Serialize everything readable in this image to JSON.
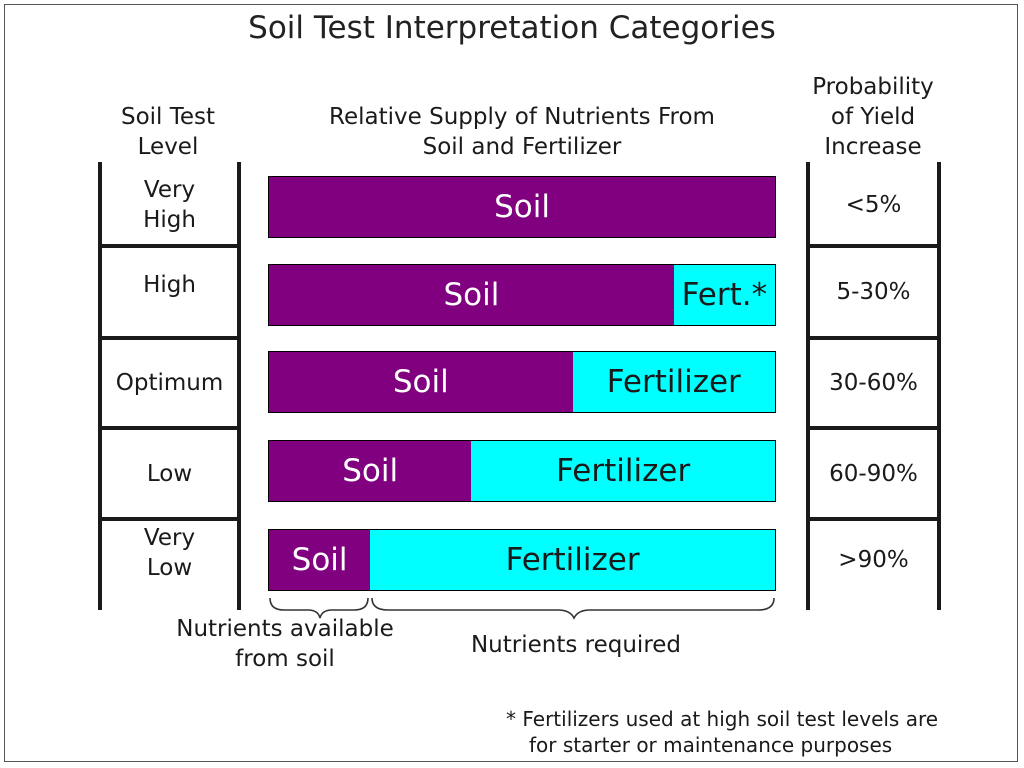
{
  "title": "Soil Test Interpretation Categories",
  "headers": {
    "level": [
      "Soil Test",
      "Level"
    ],
    "supply": [
      "Relative Supply of Nutrients From",
      "Soil and Fertilizer"
    ],
    "probability": [
      "Probability",
      "of Yield",
      "Increase"
    ]
  },
  "colors": {
    "soil": "#800080",
    "fertilizer": "#00ffff"
  },
  "rows": [
    {
      "level": [
        "Very",
        "High"
      ],
      "soil_label": "Soil",
      "fert_label": "",
      "soil_fraction": 1.0,
      "probability": "<5%"
    },
    {
      "level": [
        "High"
      ],
      "soil_label": "Soil",
      "fert_label": "Fert.*",
      "soil_fraction": 0.8,
      "probability": "5-30%"
    },
    {
      "level": [
        "Optimum"
      ],
      "soil_label": "Soil",
      "fert_label": "Fertilizer",
      "soil_fraction": 0.6,
      "probability": "30-60%"
    },
    {
      "level": [
        "Low"
      ],
      "soil_label": "Soil",
      "fert_label": "Fertilizer",
      "soil_fraction": 0.4,
      "probability": "60-90%"
    },
    {
      "level": [
        "Very",
        "Low"
      ],
      "soil_label": "Soil",
      "fert_label": "Fertilizer",
      "soil_fraction": 0.2,
      "probability": ">90%"
    }
  ],
  "brace_labels": {
    "available": [
      "Nutrients available",
      "from soil"
    ],
    "required": "Nutrients required"
  },
  "footnote": [
    "* Fertilizers used at high soil test levels are",
    "for starter or maintenance purposes"
  ]
}
